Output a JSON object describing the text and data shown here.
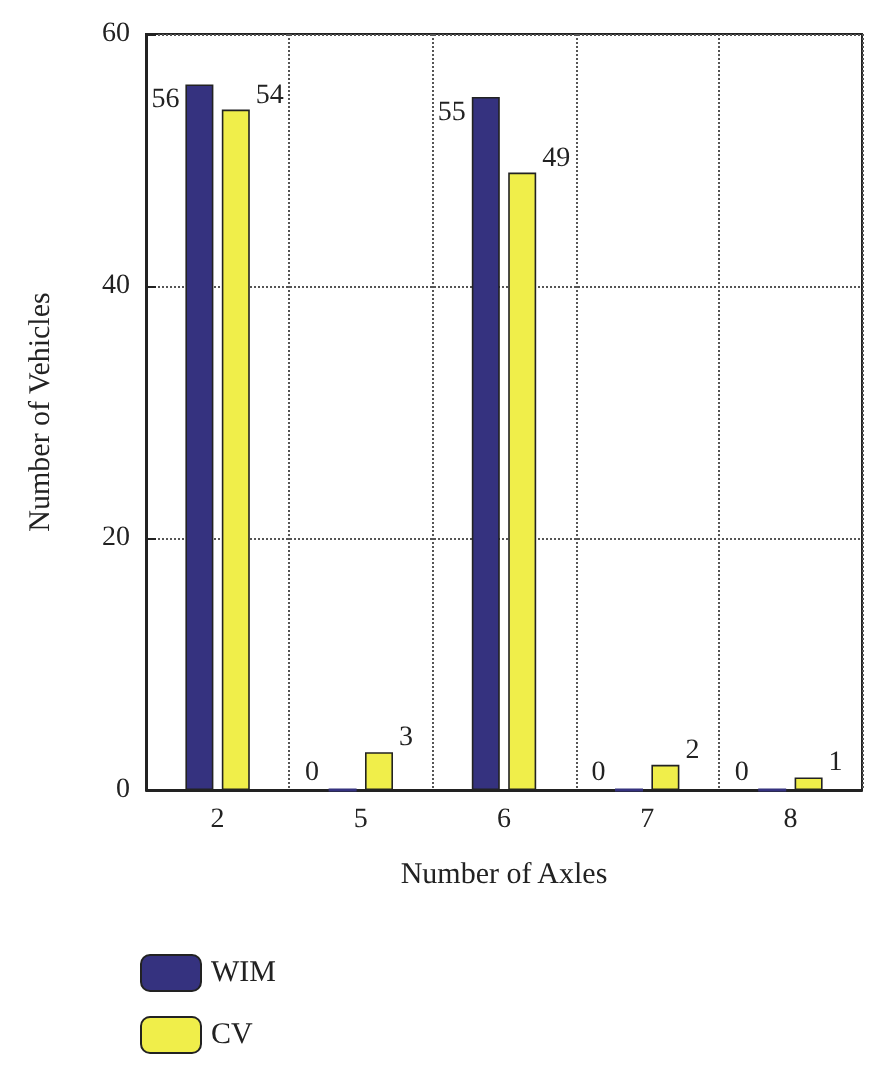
{
  "chart_data": {
    "type": "bar",
    "xlabel": "Number of Axles",
    "ylabel": "Number of Vehicles",
    "categories": [
      "2",
      "5",
      "6",
      "7",
      "8"
    ],
    "series": [
      {
        "name": "WIM",
        "color": "#35327f",
        "values": [
          56,
          0,
          55,
          0,
          0
        ]
      },
      {
        "name": "CV",
        "color": "#f0ee4a",
        "values": [
          54,
          3,
          49,
          2,
          1
        ]
      }
    ],
    "ylim": [
      0,
      60
    ],
    "yticks": [
      0,
      20,
      40,
      60
    ],
    "grid": true,
    "legend": "bottom left",
    "data_labels": true
  }
}
